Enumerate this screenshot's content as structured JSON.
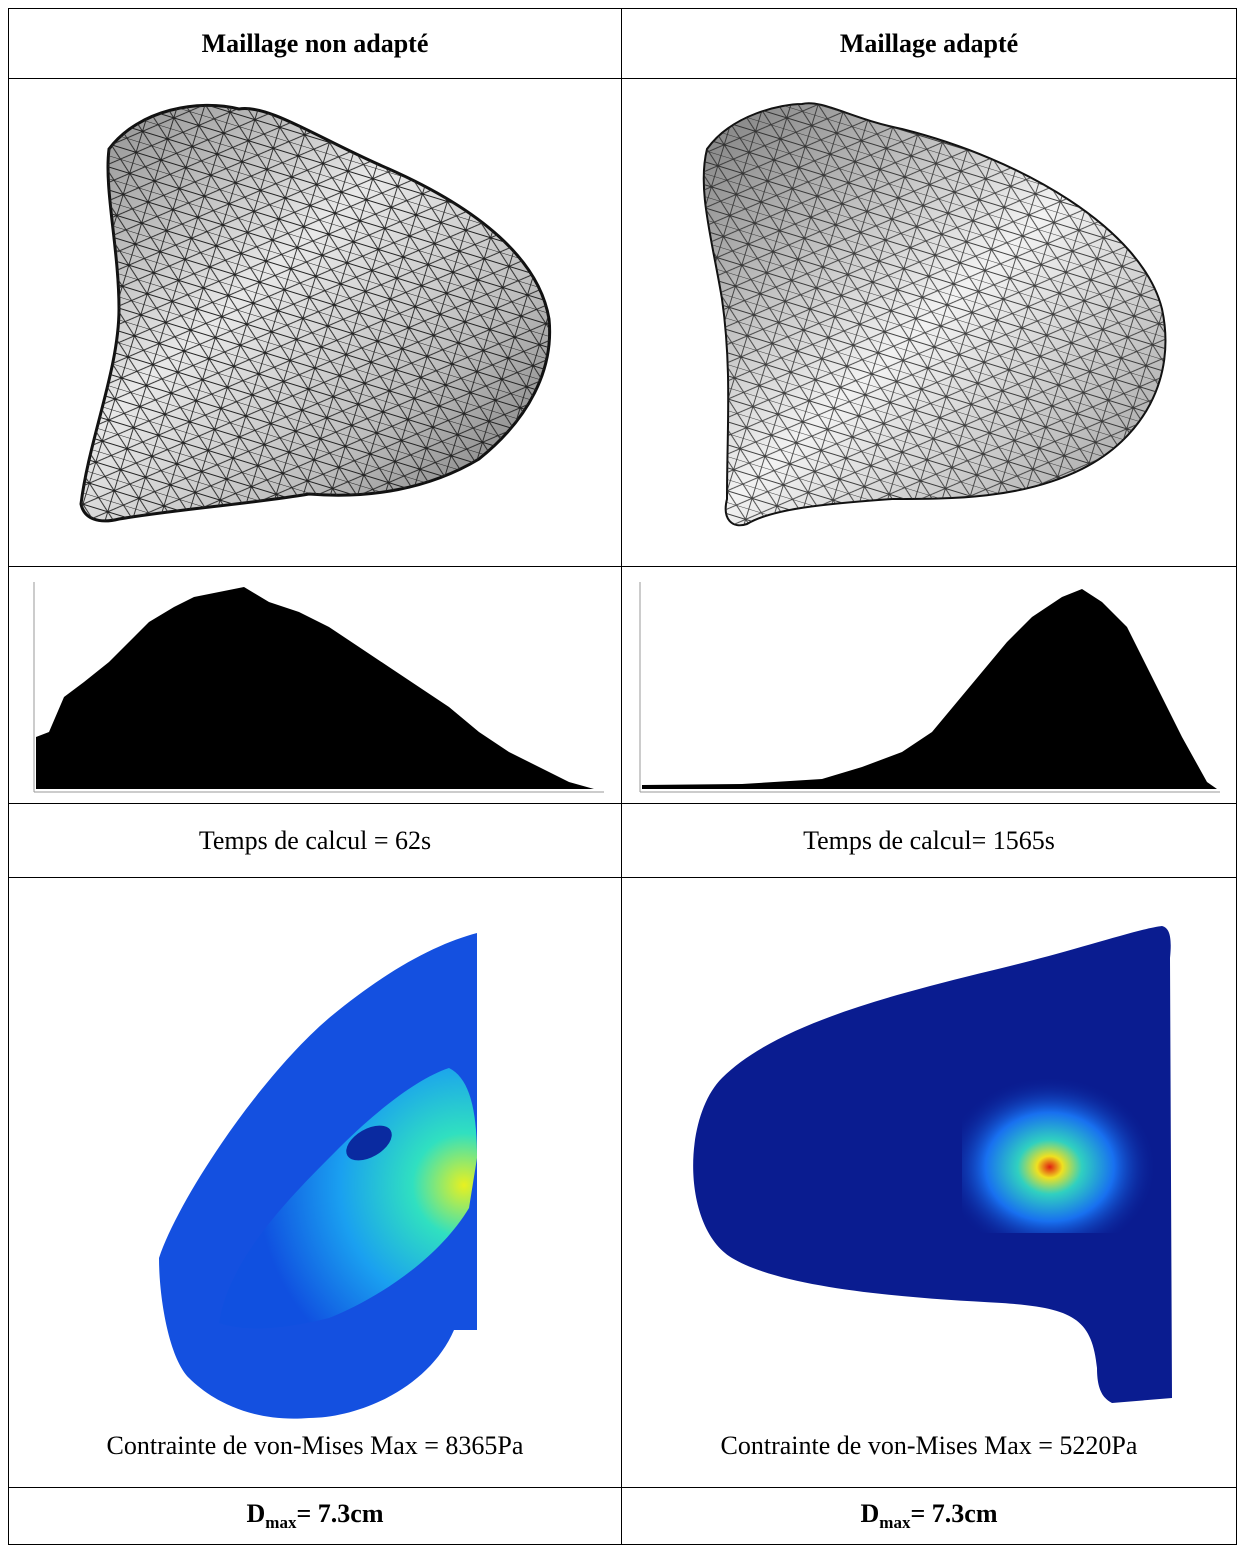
{
  "table": {
    "header": [
      "Maillage non adapté",
      "Maillage adapté"
    ],
    "time": [
      "Temps de calcul = 62s",
      "Temps de calcul= 1565s"
    ],
    "stress": [
      "Contrainte de von-Mises Max = 8365Pa",
      "Contrainte de von-Mises Max = 5220Pa"
    ],
    "dmax": [
      {
        "symbol": "D",
        "subscript": "max",
        "text": "= 7.3cm"
      },
      {
        "symbol": "D",
        "subscript": "max",
        "text": "= 7.3cm"
      }
    ]
  }
}
